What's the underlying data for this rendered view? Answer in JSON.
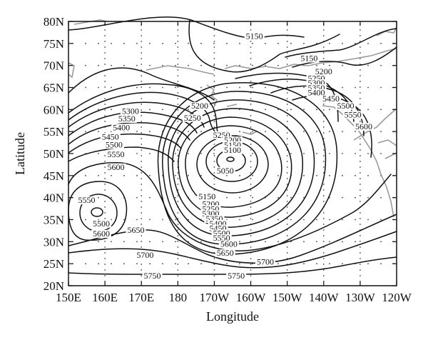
{
  "map": {
    "xlabel": "Longitude",
    "ylabel": "Latitude",
    "x_ticks": [
      "150E",
      "160E",
      "170E",
      "180",
      "170W",
      "160W",
      "150W",
      "140W",
      "130W",
      "120W"
    ],
    "y_ticks": [
      "80N",
      "75N",
      "70N",
      "65N",
      "60N",
      "55N",
      "50N",
      "45N",
      "40N",
      "35N",
      "30N",
      "25N",
      "20N"
    ],
    "contour_labels": [
      {
        "text": "5150",
        "lon": -159,
        "lat": 76
      },
      {
        "text": "5150",
        "lon": -144,
        "lat": 71
      },
      {
        "text": "5200",
        "lon": -140,
        "lat": 68
      },
      {
        "text": "5250",
        "lon": -142,
        "lat": 66.5
      },
      {
        "text": "5300",
        "lon": -142,
        "lat": 65.4
      },
      {
        "text": "5350",
        "lon": -142,
        "lat": 64.3
      },
      {
        "text": "5400",
        "lon": -142,
        "lat": 63.2
      },
      {
        "text": "5450",
        "lon": -138,
        "lat": 61.8
      },
      {
        "text": "5500",
        "lon": -134,
        "lat": 60.2
      },
      {
        "text": "5550",
        "lon": -132,
        "lat": 58.2
      },
      {
        "text": "5600",
        "lon": -129,
        "lat": 55.5
      },
      {
        "text": "5200",
        "lon": -174,
        "lat": 60.2
      },
      {
        "text": "5250",
        "lon": -176,
        "lat": 57.5
      },
      {
        "text": "5300",
        "lon": 167,
        "lat": 59
      },
      {
        "text": "5350",
        "lon": 166,
        "lat": 57.3
      },
      {
        "text": "5400",
        "lon": 164.5,
        "lat": 55.3
      },
      {
        "text": "5450",
        "lon": 161.5,
        "lat": 53.2
      },
      {
        "text": "5500",
        "lon": 162.5,
        "lat": 51.4
      },
      {
        "text": "5550",
        "lon": 163,
        "lat": 49.2
      },
      {
        "text": "5600",
        "lon": 163,
        "lat": 46.3
      },
      {
        "text": "5250",
        "lon": -168,
        "lat": 53.6
      },
      {
        "text": "5200",
        "lon": -165,
        "lat": 52.4
      },
      {
        "text": "5150",
        "lon": -165,
        "lat": 51.3
      },
      {
        "text": "5100",
        "lon": -165,
        "lat": 50.2
      },
      {
        "text": "5050",
        "lon": -167,
        "lat": 45.5
      },
      {
        "text": "5150",
        "lon": -172,
        "lat": 39.6
      },
      {
        "text": "5200",
        "lon": -171,
        "lat": 37.9
      },
      {
        "text": "5250",
        "lon": -171,
        "lat": 36.8
      },
      {
        "text": "5300",
        "lon": -171,
        "lat": 35.7
      },
      {
        "text": "5350",
        "lon": -170,
        "lat": 34.6
      },
      {
        "text": "5400",
        "lon": -169,
        "lat": 33.5
      },
      {
        "text": "5450",
        "lon": -169,
        "lat": 32.4
      },
      {
        "text": "5500",
        "lon": -168,
        "lat": 31.3
      },
      {
        "text": "5550",
        "lon": -168,
        "lat": 30.2
      },
      {
        "text": "5600",
        "lon": -166,
        "lat": 28.8
      },
      {
        "text": "5650",
        "lon": -167,
        "lat": 26.8
      },
      {
        "text": "5700",
        "lon": -156,
        "lat": 24.8
      },
      {
        "text": "5550",
        "lon": 155,
        "lat": 38.8
      },
      {
        "text": "5500",
        "lon": 159,
        "lat": 33.5
      },
      {
        "text": "5600",
        "lon": 159,
        "lat": 31.2
      },
      {
        "text": "5650",
        "lon": 168.5,
        "lat": 32
      },
      {
        "text": "5700",
        "lon": 171,
        "lat": 26.3
      },
      {
        "text": "5750",
        "lon": 173,
        "lat": 21.6
      },
      {
        "text": "5750",
        "lon": -164,
        "lat": 21.6
      }
    ]
  },
  "colors": {
    "contour": "#111111",
    "coast": "#9a9a9a",
    "frame": "#111111"
  }
}
